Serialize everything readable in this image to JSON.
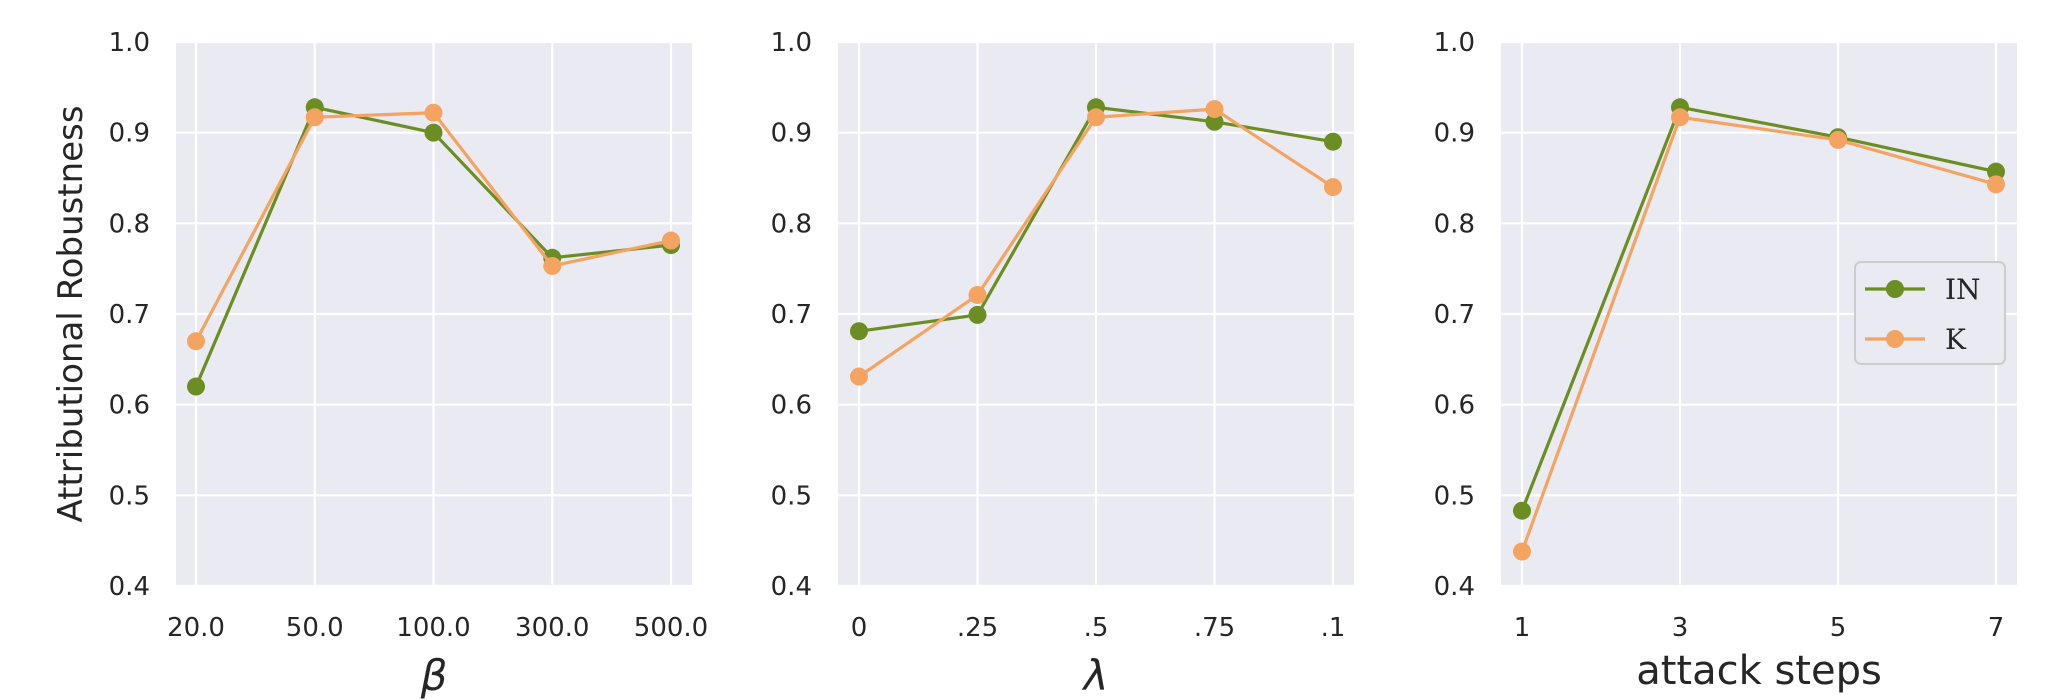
{
  "colors": {
    "IN": "#6b8e23",
    "K": "#f4a460",
    "panel_bg": "#eaeaf2",
    "grid": "#ffffff"
  },
  "chart_data": [
    {
      "type": "line",
      "categories": [
        "20.0",
        "50.0",
        "100.0",
        "300.0",
        "500.0"
      ],
      "xlabel": "β",
      "ylabel": "Attributional Robustness",
      "ylim": [
        0.4,
        1.0
      ],
      "yticks": [
        "0.4",
        "0.5",
        "0.6",
        "0.7",
        "0.8",
        "0.9",
        "1.0"
      ],
      "grid": true,
      "series": [
        {
          "name": "IN",
          "values": [
            0.62,
            0.928,
            0.9,
            0.762,
            0.776
          ]
        },
        {
          "name": "K",
          "values": [
            0.67,
            0.917,
            0.922,
            0.753,
            0.781
          ]
        }
      ]
    },
    {
      "type": "line",
      "categories": [
        "0",
        ".25",
        ".5",
        ".75",
        ".1"
      ],
      "xlabel": "λ",
      "ylabel": "",
      "ylim": [
        0.4,
        1.0
      ],
      "yticks": [
        "0.4",
        "0.5",
        "0.6",
        "0.7",
        "0.8",
        "0.9",
        "1.0"
      ],
      "grid": true,
      "series": [
        {
          "name": "IN",
          "values": [
            0.681,
            0.699,
            0.928,
            0.912,
            0.89
          ]
        },
        {
          "name": "K",
          "values": [
            0.631,
            0.721,
            0.917,
            0.926,
            0.84
          ]
        }
      ]
    },
    {
      "type": "line",
      "categories": [
        "1",
        "3",
        "5",
        "7"
      ],
      "xlabel": "attack steps",
      "ylabel": "",
      "ylim": [
        0.4,
        1.0
      ],
      "yticks": [
        "0.4",
        "0.5",
        "0.6",
        "0.7",
        "0.8",
        "0.9",
        "1.0"
      ],
      "grid": true,
      "legend": "center-right",
      "series": [
        {
          "name": "IN",
          "values": [
            0.483,
            0.928,
            0.895,
            0.857
          ]
        },
        {
          "name": "K",
          "values": [
            0.438,
            0.917,
            0.892,
            0.843
          ]
        }
      ]
    }
  ]
}
